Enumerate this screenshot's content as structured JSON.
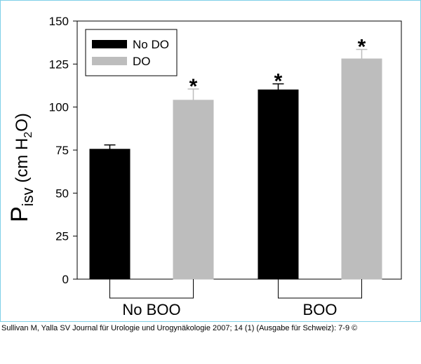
{
  "chart_data": {
    "type": "bar",
    "groups": [
      "No BOO",
      "BOO"
    ],
    "series": [
      {
        "name": "No DO",
        "color": "#000000",
        "values": [
          75.5,
          110
        ],
        "errors": [
          2.5,
          3.5
        ]
      },
      {
        "name": "DO",
        "color": "#bdbdbd",
        "values": [
          104,
          128
        ],
        "errors": [
          6.5,
          5.5
        ]
      }
    ],
    "significance_marker": "*",
    "significant": [
      [
        false,
        true
      ],
      [
        true,
        true
      ]
    ],
    "ylabel_main": "P",
    "ylabel_sub": "isv",
    "ylabel_unit_pre": " (cm H",
    "ylabel_unit_sub": "2",
    "ylabel_unit_post": "O)",
    "ylim": [
      0,
      150
    ],
    "yticks": [
      0,
      25,
      50,
      75,
      100,
      125,
      150
    ],
    "legend_position": "top-left",
    "grid": false
  },
  "caption": "Sullivan M, Yalla SV Journal für Urologie und Urogynäkologie 2007; 14 (1) (Ausgabe für Schweiz): 7-9 ©"
}
